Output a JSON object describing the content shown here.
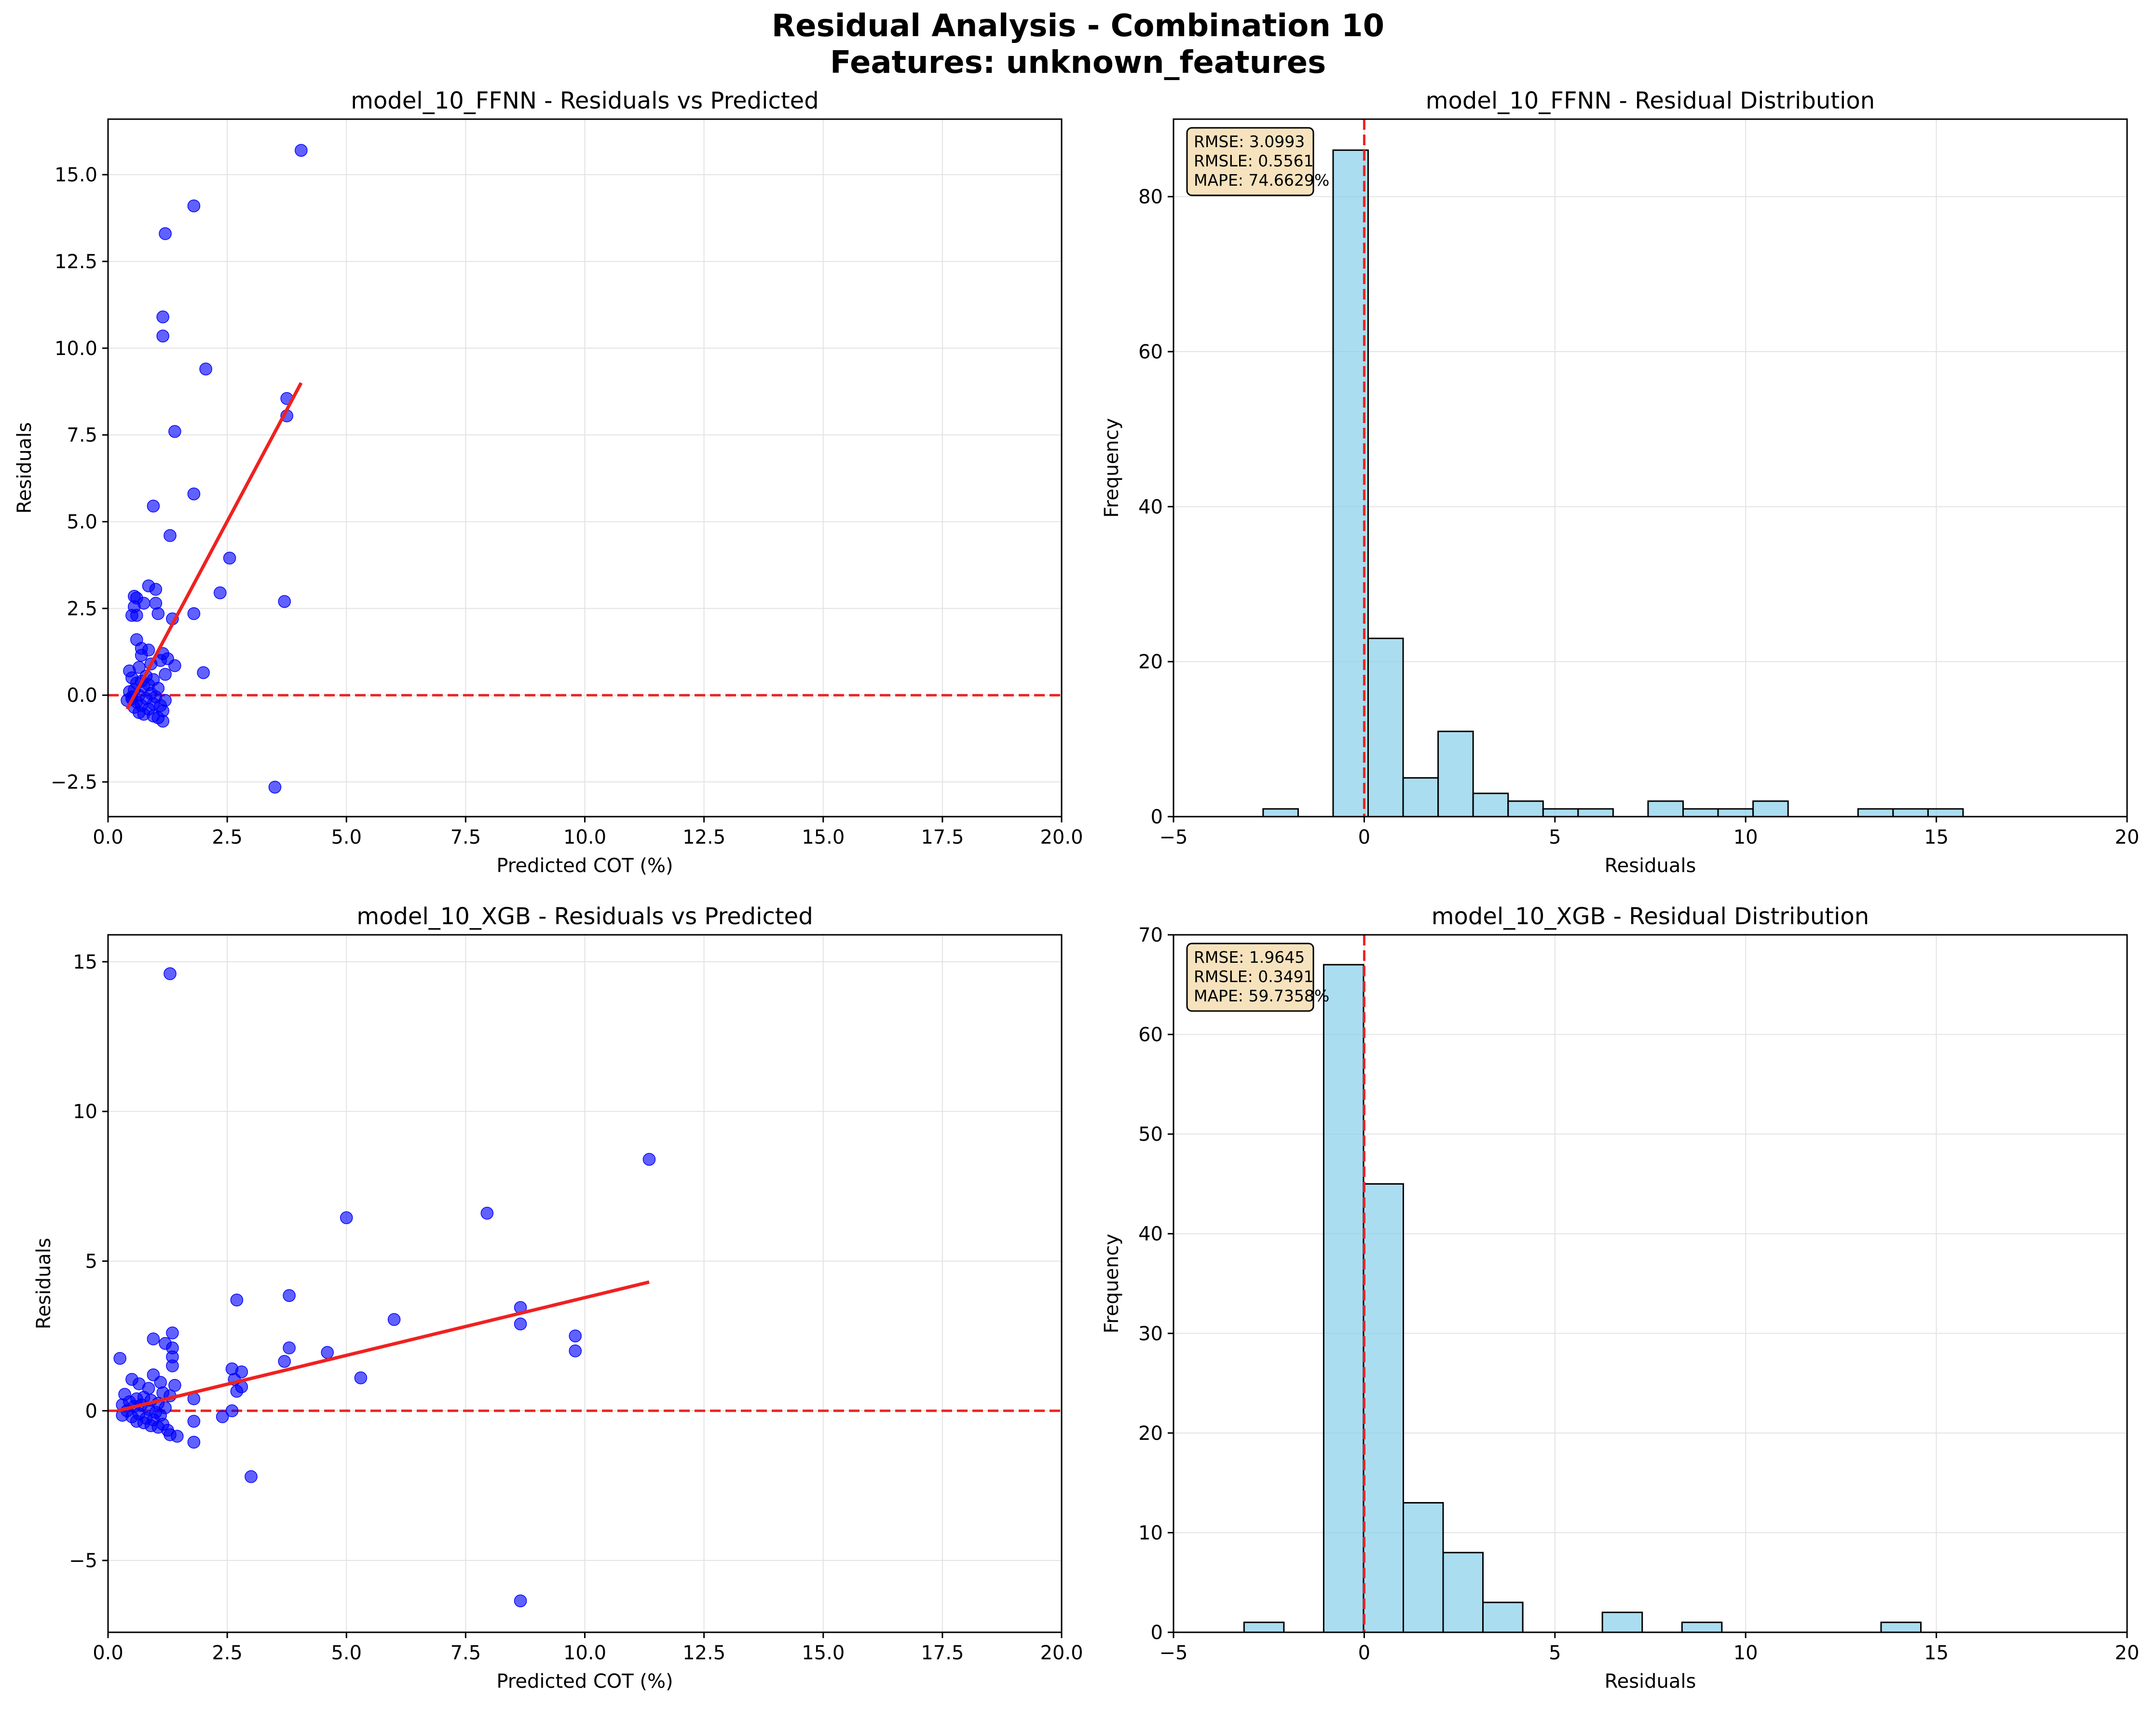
{
  "figure": {
    "title_line1": "Residual Analysis - Combination 10",
    "title_line2": "Features: unknown_features"
  },
  "colors": {
    "scatter": "#0000ff",
    "trend": "#ee2222",
    "zero_line": "#ee2222",
    "hist_fill": "#87ceeb",
    "hist_edge": "#000000",
    "stats_box_fill": "#f5deb3"
  },
  "chart_data": [
    {
      "type": "scatter",
      "title": "model_10_FFNN - Residuals vs Predicted",
      "xlabel": "Predicted COT (%)",
      "ylabel": "Residuals",
      "xlim": [
        0,
        20
      ],
      "ylim": [
        -3.5,
        16.6
      ],
      "xticks": [
        0,
        2.5,
        5,
        7.5,
        10,
        12.5,
        15,
        17.5,
        20
      ],
      "xtick_labels": [
        "0.0",
        "2.5",
        "5.0",
        "7.5",
        "10.0",
        "12.5",
        "15.0",
        "17.5",
        "20.0"
      ],
      "yticks": [
        -2.5,
        0,
        2.5,
        5,
        7.5,
        10,
        12.5,
        15
      ],
      "ytick_labels": [
        "−2.5",
        "0.0",
        "2.5",
        "5.0",
        "7.5",
        "10.0",
        "12.5",
        "15.0"
      ],
      "grid": true,
      "zero_line": 0,
      "trend_line": {
        "x": [
          0.4,
          4.05
        ],
        "y": [
          -0.4,
          9.0
        ]
      },
      "points": [
        [
          4.05,
          15.7
        ],
        [
          1.8,
          14.1
        ],
        [
          1.2,
          13.3
        ],
        [
          1.15,
          10.9
        ],
        [
          1.15,
          10.35
        ],
        [
          2.05,
          9.4
        ],
        [
          3.75,
          8.55
        ],
        [
          3.75,
          8.05
        ],
        [
          1.4,
          7.6
        ],
        [
          1.8,
          5.8
        ],
        [
          0.95,
          5.45
        ],
        [
          1.3,
          4.6
        ],
        [
          2.55,
          3.95
        ],
        [
          0.85,
          3.15
        ],
        [
          1.0,
          3.05
        ],
        [
          2.35,
          2.95
        ],
        [
          0.55,
          2.85
        ],
        [
          0.6,
          2.8
        ],
        [
          3.7,
          2.7
        ],
        [
          1.0,
          2.65
        ],
        [
          0.75,
          2.65
        ],
        [
          0.55,
          2.55
        ],
        [
          1.05,
          2.35
        ],
        [
          1.8,
          2.35
        ],
        [
          0.5,
          2.3
        ],
        [
          0.6,
          2.3
        ],
        [
          1.35,
          2.2
        ],
        [
          0.6,
          1.6
        ],
        [
          0.7,
          1.35
        ],
        [
          0.85,
          1.3
        ],
        [
          1.15,
          1.2
        ],
        [
          0.7,
          1.15
        ],
        [
          1.25,
          1.05
        ],
        [
          1.1,
          1.0
        ],
        [
          0.9,
          0.9
        ],
        [
          1.4,
          0.85
        ],
        [
          0.65,
          0.8
        ],
        [
          0.45,
          0.7
        ],
        [
          2.0,
          0.65
        ],
        [
          1.2,
          0.6
        ],
        [
          0.8,
          0.55
        ],
        [
          0.5,
          0.5
        ],
        [
          0.95,
          0.45
        ],
        [
          0.7,
          0.4
        ],
        [
          0.6,
          0.35
        ],
        [
          0.85,
          0.3
        ],
        [
          0.75,
          0.25
        ],
        [
          1.05,
          0.2
        ],
        [
          0.55,
          0.15
        ],
        [
          0.45,
          0.1
        ],
        [
          0.9,
          0.05
        ],
        [
          0.65,
          0.0
        ],
        [
          1.0,
          -0.05
        ],
        [
          0.5,
          -0.1
        ],
        [
          0.8,
          -0.1
        ],
        [
          1.2,
          -0.15
        ],
        [
          0.6,
          -0.2
        ],
        [
          0.95,
          -0.25
        ],
        [
          0.7,
          -0.3
        ],
        [
          1.1,
          -0.3
        ],
        [
          0.55,
          -0.35
        ],
        [
          0.85,
          -0.4
        ],
        [
          1.15,
          -0.45
        ],
        [
          0.65,
          -0.5
        ],
        [
          0.75,
          -0.55
        ],
        [
          0.95,
          -0.6
        ],
        [
          1.05,
          -0.65
        ],
        [
          1.15,
          -0.75
        ],
        [
          0.5,
          -0.05
        ],
        [
          0.4,
          -0.15
        ],
        [
          3.5,
          -2.65
        ]
      ]
    },
    {
      "type": "bar",
      "title": "model_10_FFNN - Residual Distribution",
      "xlabel": "Residuals",
      "ylabel": "Frequency",
      "xlim": [
        -5,
        20
      ],
      "ylim": [
        0,
        90
      ],
      "xticks": [
        -5,
        0,
        5,
        10,
        15,
        20
      ],
      "xtick_labels": [
        "−5",
        "0",
        "5",
        "10",
        "15",
        "20"
      ],
      "yticks": [
        0,
        20,
        40,
        60,
        80
      ],
      "ytick_labels": [
        "0",
        "20",
        "40",
        "60",
        "80"
      ],
      "grid": true,
      "zero_line": 0,
      "bin_start": -2.65,
      "bin_width": 0.9175,
      "counts": [
        1,
        0,
        86,
        23,
        5,
        11,
        3,
        2,
        1,
        1,
        0,
        2,
        1,
        1,
        2,
        0,
        0,
        1,
        1,
        1
      ],
      "stats": [
        "RMSE: 3.0993",
        "RMSLE: 0.5561",
        "MAPE: 74.6629%"
      ]
    },
    {
      "type": "scatter",
      "title": "model_10_XGB - Residuals vs Predicted",
      "xlabel": "Predicted COT (%)",
      "ylabel": "Residuals",
      "xlim": [
        0,
        20
      ],
      "ylim": [
        -7.4,
        15.9
      ],
      "xticks": [
        0,
        2.5,
        5,
        7.5,
        10,
        12.5,
        15,
        17.5,
        20
      ],
      "xtick_labels": [
        "0.0",
        "2.5",
        "5.0",
        "7.5",
        "10.0",
        "12.5",
        "15.0",
        "17.5",
        "20.0"
      ],
      "yticks": [
        -5,
        0,
        5,
        10,
        15
      ],
      "ytick_labels": [
        "−5",
        "0",
        "5",
        "10",
        "15"
      ],
      "grid": true,
      "zero_line": 0,
      "trend_line": {
        "x": [
          0.2,
          11.35
        ],
        "y": [
          0.0,
          4.3
        ]
      },
      "points": [
        [
          1.3,
          14.6
        ],
        [
          11.35,
          8.4
        ],
        [
          7.95,
          6.6
        ],
        [
          5.0,
          6.45
        ],
        [
          3.8,
          3.85
        ],
        [
          2.7,
          3.7
        ],
        [
          8.65,
          3.45
        ],
        [
          6.0,
          3.05
        ],
        [
          8.65,
          2.9
        ],
        [
          1.35,
          2.6
        ],
        [
          9.8,
          2.5
        ],
        [
          0.95,
          2.4
        ],
        [
          1.2,
          2.25
        ],
        [
          3.8,
          2.1
        ],
        [
          1.35,
          2.1
        ],
        [
          9.8,
          2.0
        ],
        [
          4.6,
          1.95
        ],
        [
          1.35,
          1.8
        ],
        [
          0.25,
          1.75
        ],
        [
          3.7,
          1.65
        ],
        [
          1.35,
          1.5
        ],
        [
          2.6,
          1.4
        ],
        [
          2.8,
          1.3
        ],
        [
          0.95,
          1.2
        ],
        [
          5.3,
          1.1
        ],
        [
          2.65,
          1.05
        ],
        [
          0.5,
          1.05
        ],
        [
          1.1,
          0.95
        ],
        [
          0.65,
          0.9
        ],
        [
          1.4,
          0.85
        ],
        [
          2.8,
          0.8
        ],
        [
          0.85,
          0.75
        ],
        [
          2.7,
          0.65
        ],
        [
          1.15,
          0.6
        ],
        [
          0.35,
          0.55
        ],
        [
          1.3,
          0.5
        ],
        [
          0.75,
          0.45
        ],
        [
          0.6,
          0.4
        ],
        [
          1.8,
          0.4
        ],
        [
          0.9,
          0.35
        ],
        [
          0.45,
          0.3
        ],
        [
          1.05,
          0.25
        ],
        [
          0.3,
          0.2
        ],
        [
          0.7,
          0.2
        ],
        [
          0.55,
          0.15
        ],
        [
          1.2,
          0.1
        ],
        [
          0.85,
          0.05
        ],
        [
          0.4,
          0.0
        ],
        [
          2.6,
          0.0
        ],
        [
          1.0,
          -0.05
        ],
        [
          0.65,
          -0.1
        ],
        [
          0.3,
          -0.15
        ],
        [
          1.1,
          -0.15
        ],
        [
          0.5,
          -0.2
        ],
        [
          2.4,
          -0.2
        ],
        [
          0.8,
          -0.25
        ],
        [
          0.95,
          -0.3
        ],
        [
          0.6,
          -0.35
        ],
        [
          1.8,
          -0.35
        ],
        [
          0.75,
          -0.4
        ],
        [
          1.15,
          -0.45
        ],
        [
          0.9,
          -0.5
        ],
        [
          1.05,
          -0.55
        ],
        [
          1.25,
          -0.65
        ],
        [
          1.3,
          -0.8
        ],
        [
          1.45,
          -0.85
        ],
        [
          1.8,
          -1.05
        ],
        [
          3.0,
          -2.2
        ],
        [
          8.65,
          -6.35
        ]
      ]
    },
    {
      "type": "bar",
      "title": "model_10_XGB - Residual Distribution",
      "xlabel": "Residuals",
      "ylabel": "Frequency",
      "xlim": [
        -5,
        20
      ],
      "ylim": [
        0,
        70
      ],
      "xticks": [
        -5,
        0,
        5,
        10,
        15,
        20
      ],
      "xtick_labels": [
        "−5",
        "0",
        "5",
        "10",
        "15",
        "20"
      ],
      "yticks": [
        0,
        10,
        20,
        30,
        40,
        50,
        60,
        70
      ],
      "ytick_labels": [
        "0",
        "10",
        "20",
        "30",
        "40",
        "50",
        "60",
        "70"
      ],
      "grid": true,
      "zero_line": 0,
      "bin_start": -3.15,
      "bin_width": 1.0438,
      "counts": [
        1,
        0,
        67,
        45,
        13,
        8,
        3,
        0,
        0,
        2,
        0,
        1,
        0,
        0,
        0,
        0,
        1
      ],
      "stats": [
        "RMSE: 1.9645",
        "RMSLE: 0.3491",
        "MAPE: 59.7358%"
      ]
    }
  ]
}
